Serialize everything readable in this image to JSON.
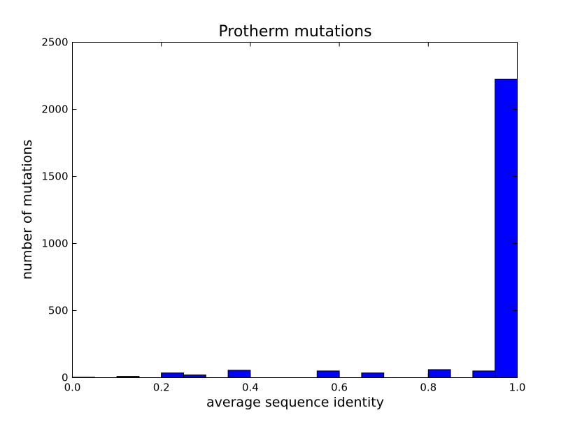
{
  "chart_data": {
    "type": "bar",
    "title": "Protherm mutations",
    "xlabel": "average sequence identity",
    "ylabel": "number of mutations",
    "xlim": [
      0.0,
      1.0
    ],
    "ylim": [
      0,
      2500
    ],
    "x_ticks": [
      0.0,
      0.2,
      0.4,
      0.6,
      0.8,
      1.0
    ],
    "x_tick_labels": [
      "0.0",
      "0.2",
      "0.4",
      "0.6",
      "0.8",
      "1.0"
    ],
    "y_ticks": [
      0,
      500,
      1000,
      1500,
      2000,
      2500
    ],
    "y_tick_labels": [
      "0",
      "500",
      "1000",
      "1500",
      "2000",
      "2500"
    ],
    "bin_width": 0.05,
    "bins": [
      {
        "x0": 0.0,
        "x1": 0.05,
        "value": 3
      },
      {
        "x0": 0.05,
        "x1": 0.1,
        "value": 0
      },
      {
        "x0": 0.1,
        "x1": 0.15,
        "value": 10
      },
      {
        "x0": 0.15,
        "x1": 0.2,
        "value": 0
      },
      {
        "x0": 0.2,
        "x1": 0.25,
        "value": 35
      },
      {
        "x0": 0.25,
        "x1": 0.3,
        "value": 20
      },
      {
        "x0": 0.3,
        "x1": 0.35,
        "value": 0
      },
      {
        "x0": 0.35,
        "x1": 0.4,
        "value": 55
      },
      {
        "x0": 0.4,
        "x1": 0.45,
        "value": 0
      },
      {
        "x0": 0.45,
        "x1": 0.5,
        "value": 0
      },
      {
        "x0": 0.5,
        "x1": 0.55,
        "value": 0
      },
      {
        "x0": 0.55,
        "x1": 0.6,
        "value": 50
      },
      {
        "x0": 0.6,
        "x1": 0.65,
        "value": 0
      },
      {
        "x0": 0.65,
        "x1": 0.7,
        "value": 35
      },
      {
        "x0": 0.7,
        "x1": 0.75,
        "value": 0
      },
      {
        "x0": 0.75,
        "x1": 0.8,
        "value": 0
      },
      {
        "x0": 0.8,
        "x1": 0.85,
        "value": 60
      },
      {
        "x0": 0.85,
        "x1": 0.9,
        "value": 0
      },
      {
        "x0": 0.9,
        "x1": 0.95,
        "value": 50
      },
      {
        "x0": 0.95,
        "x1": 1.0,
        "value": 2225
      }
    ],
    "bar_color": "#0000ff",
    "edge_color": "#000000",
    "grid": false,
    "legend": "none"
  }
}
